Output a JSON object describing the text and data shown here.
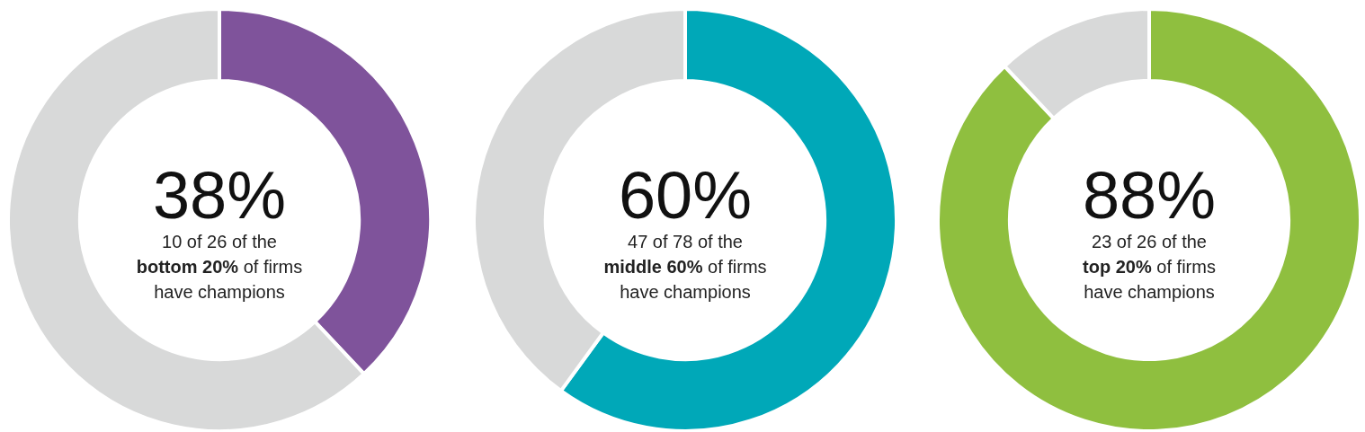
{
  "chart_data": [
    {
      "type": "donut",
      "categories": [
        null,
        null
      ],
      "values": [
        38,
        62
      ],
      "colors": [
        "#7f539b",
        "#d8d9d9"
      ],
      "value_labels": [
        "38%",
        null
      ],
      "annotations": [
        "10 of 26 of the",
        "bottom 20%",
        "of firms",
        "have champions"
      ]
    },
    {
      "type": "donut",
      "categories": [
        null,
        null
      ],
      "values": [
        60,
        40
      ],
      "colors": [
        "#00a8b8",
        "#d8d9d9"
      ],
      "value_labels": [
        "60%",
        null
      ],
      "annotations": [
        "47 of 78 of the",
        "middle 60%",
        "of firms",
        "have champions"
      ]
    },
    {
      "type": "donut",
      "categories": [
        null,
        null
      ],
      "values": [
        88,
        12
      ],
      "colors": [
        "#8fbf3f",
        "#d8d9d9"
      ],
      "value_labels": [
        "88%",
        null
      ],
      "annotations": [
        "23 of 26 of the",
        "top 20%",
        "of firms",
        "have champions"
      ]
    }
  ]
}
